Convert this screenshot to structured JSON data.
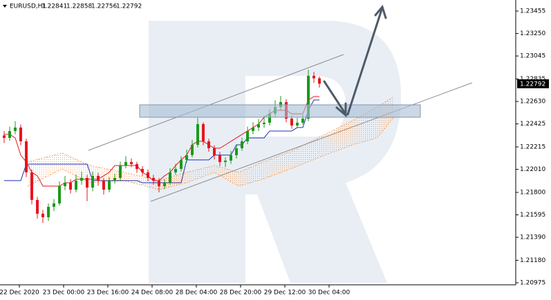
{
  "chart_data": {
    "type": "candlestick",
    "symbol": "EURUSD,H1",
    "up_color": "#1a9a1a",
    "down_color": "#e8141c",
    "open": [
      1.2232,
      1.22297,
      1.2236,
      1.22392,
      1.22266,
      1.21983,
      1.21731,
      1.21605,
      1.21573,
      1.21668,
      1.21699,
      1.21857,
      1.21888,
      1.21825,
      1.21907,
      1.21932,
      1.21844,
      1.21951,
      1.21907,
      1.21825,
      1.21907,
      1.21932,
      1.22045,
      1.22077,
      1.22058,
      1.22014,
      1.21983,
      1.21932,
      1.21907,
      1.21857,
      1.21888,
      1.21983,
      1.22014,
      1.22096,
      1.2214,
      1.22234,
      1.22423,
      1.22266,
      1.22203,
      1.2214,
      1.22077,
      1.2209,
      1.2214,
      1.22203,
      1.22266,
      1.2236,
      1.22392,
      1.22423,
      1.22436,
      1.22518,
      1.2258,
      1.22624,
      1.22473,
      1.2241,
      1.22436,
      1.22473,
      1.22864,
      1.22841
    ],
    "high": [
      1.2236,
      1.224,
      1.2245,
      1.2242,
      1.2229,
      1.2201,
      1.2176,
      1.2164,
      1.217,
      1.2174,
      1.219,
      1.2195,
      1.2192,
      1.2196,
      1.2199,
      1.2196,
      1.2199,
      1.2198,
      1.2193,
      1.2194,
      1.2197,
      1.2208,
      1.2213,
      1.2211,
      1.2208,
      1.2204,
      1.2201,
      1.2196,
      1.2193,
      1.2192,
      1.2202,
      1.2206,
      1.2213,
      1.2219,
      1.2228,
      1.2248,
      1.2244,
      1.2229,
      1.2223,
      1.2217,
      1.2212,
      1.2218,
      1.2224,
      1.223,
      1.224,
      1.2244,
      1.2247,
      1.225,
      1.2256,
      1.2264,
      1.2268,
      1.2265,
      1.225,
      1.2248,
      1.2251,
      1.2292,
      1.229,
      1.22858
    ],
    "low": [
      1.2225,
      1.2227,
      1.2233,
      1.2223,
      1.2194,
      1.2169,
      1.2156,
      1.2152,
      1.2154,
      1.2163,
      1.2168,
      1.2182,
      1.2179,
      1.218,
      1.2187,
      1.2172,
      1.2181,
      1.2186,
      1.2178,
      1.218,
      1.2188,
      1.2191,
      1.2202,
      1.2203,
      1.2198,
      1.2195,
      1.219,
      1.2187,
      1.218,
      1.2183,
      1.2187,
      1.2196,
      1.2199,
      1.2207,
      1.2212,
      1.2221,
      1.2223,
      1.2217,
      1.221,
      1.2204,
      1.2203,
      1.2206,
      1.2211,
      1.2218,
      1.2224,
      1.2233,
      1.2236,
      1.2239,
      1.2241,
      1.2249,
      1.2255,
      1.2244,
      1.2238,
      1.2239,
      1.2242,
      1.2245,
      1.228,
      1.22756
    ],
    "close": [
      1.22297,
      1.2236,
      1.22392,
      1.22266,
      1.21983,
      1.21731,
      1.21605,
      1.21573,
      1.21668,
      1.21699,
      1.21857,
      1.21888,
      1.21825,
      1.21907,
      1.21932,
      1.21844,
      1.21951,
      1.21907,
      1.21825,
      1.21907,
      1.21932,
      1.22045,
      1.22077,
      1.22058,
      1.22014,
      1.21983,
      1.21932,
      1.21907,
      1.21857,
      1.21888,
      1.21983,
      1.22014,
      1.22096,
      1.2214,
      1.22234,
      1.22423,
      1.22266,
      1.22203,
      1.2214,
      1.22077,
      1.2209,
      1.2214,
      1.22203,
      1.22266,
      1.2236,
      1.22392,
      1.22423,
      1.22436,
      1.22518,
      1.2258,
      1.22624,
      1.22473,
      1.2241,
      1.22436,
      1.22473,
      1.22864,
      1.22841,
      1.22792
    ],
    "lines": [
      {
        "color": "#e8141c",
        "values": [
          1.22329,
          1.22329,
          1.22297,
          1.2214,
          1.22077,
          1.21983,
          1.21951,
          1.21857,
          1.21857,
          1.21857,
          1.21857,
          1.21888,
          1.21888,
          1.2192,
          1.2192,
          1.2192,
          1.2192,
          1.2192,
          1.21951,
          1.21983,
          1.22045,
          1.22045,
          1.22045,
          1.22045,
          1.22045,
          1.21983,
          1.21951,
          1.21907,
          1.21907,
          1.21951,
          1.21983,
          1.22045,
          1.22096,
          1.2214,
          1.22234,
          1.22266,
          1.22266,
          1.22234,
          1.22203,
          1.22203,
          1.22234,
          1.22266,
          1.22297,
          1.22329,
          1.2236,
          1.22392,
          1.22423,
          1.22486,
          1.22517,
          1.22549,
          1.22549,
          1.22549,
          1.22517,
          1.22517,
          1.22517,
          1.22643,
          1.22675,
          1.22675
        ]
      },
      {
        "color": "#1f2fb0",
        "values": [
          1.21907,
          1.21907,
          1.21907,
          1.21907,
          1.22058,
          1.22058,
          1.22058,
          1.22058,
          1.22058,
          1.22058,
          1.22058,
          1.22058,
          1.22058,
          1.22058,
          1.22058,
          1.22058,
          1.21907,
          1.21907,
          1.21907,
          1.21907,
          1.21907,
          1.21907,
          1.21907,
          1.21907,
          1.21907,
          1.21888,
          1.21888,
          1.21888,
          1.21888,
          1.21888,
          1.21888,
          1.21888,
          1.21888,
          1.22096,
          1.22096,
          1.22096,
          1.22096,
          1.22096,
          1.2214,
          1.2214,
          1.2214,
          1.2214,
          1.22234,
          1.22234,
          1.22297,
          1.22297,
          1.22297,
          1.22297,
          1.2236,
          1.2236,
          1.2236,
          1.2236,
          1.2236,
          1.22392,
          1.22392,
          1.22549,
          1.22643,
          1.22643
        ]
      }
    ],
    "cloud": {
      "color": "#f0a060",
      "x": [
        4.25,
        10.5,
        15.5,
        21.75,
        28,
        33,
        38,
        42.4,
        46.75,
        51.75,
        58,
        63,
        67.4,
        70.5
      ],
      "span_a": [
        1.22077,
        1.22159,
        1.22045,
        1.21983,
        1.21907,
        1.21983,
        1.22045,
        1.21983,
        1.22077,
        1.22171,
        1.22329,
        1.22455,
        1.2258,
        1.22675
      ],
      "span_b": [
        1.21857,
        1.22014,
        1.21888,
        1.21907,
        1.21825,
        1.21888,
        1.21983,
        1.21857,
        1.2192,
        1.22014,
        1.2214,
        1.22234,
        1.22297,
        1.22486
      ]
    },
    "xlim": [
      -0.75,
      92.375
    ],
    "xticks": [
      {
        "value": 2.75,
        "label": "22 Dec 2020"
      },
      {
        "value": 10.75,
        "label": "23 Dec 00:00"
      },
      {
        "value": 18.75,
        "label": "23 Dec 16:00"
      },
      {
        "value": 26.75,
        "label": "24 Dec 08:00"
      },
      {
        "value": 34.75,
        "label": "28 Dec 04:00"
      },
      {
        "value": 42.75,
        "label": "28 Dec 20:00"
      },
      {
        "value": 50.75,
        "label": "29 Dec 12:00"
      },
      {
        "value": 58.75,
        "label": "30 Dec 04:00"
      }
    ],
    "ylim": [
      1.20956,
      1.23556
    ],
    "yticks": [
      1.23455,
      {
        "value": 1.2325,
        "label": "1.23250"
      },
      1.23045,
      1.22835,
      {
        "value": 1.2263,
        "label": "1.22630"
      },
      1.22425,
      1.22215,
      {
        "value": 1.2201,
        "label": "1.22010"
      },
      {
        "value": 1.218,
        "label": "1.21800"
      },
      1.21595,
      {
        "value": 1.2139,
        "label": "1.21390"
      },
      {
        "value": 1.2118,
        "label": "1.21180"
      },
      1.20975
    ]
  }
}
